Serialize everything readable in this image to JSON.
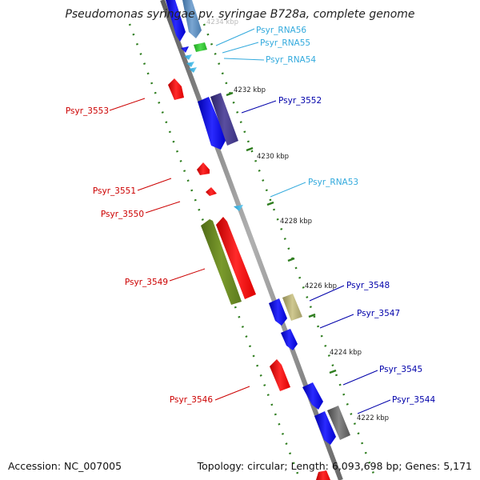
{
  "title": "Pseudomonas syringae pv. syringae B728a, complete genome",
  "footer": {
    "accession": "Accession: NC_007005",
    "topology": "Topology: circular; Length: 6,093,698 bp; Genes: 5,171"
  },
  "colors": {
    "backbone": "#8a8a8a",
    "ticks": "#2e7d1e",
    "gene_red": "#ff1a1a",
    "gene_blue": "#1a1aff",
    "rna_cyan": "#33bbee",
    "label_red": "#cc0000",
    "label_navy": "#0000aa",
    "label_cyan": "#33aadd"
  },
  "scale_labels": [
    {
      "text": "4234 kbp",
      "faded": true
    },
    {
      "text": "4232 kbp"
    },
    {
      "text": "4230 kbp"
    },
    {
      "text": "4228 kbp"
    },
    {
      "text": "4226 kbp"
    },
    {
      "text": "4224 kbp"
    },
    {
      "text": "4222 kbp"
    }
  ],
  "feature_labels": [
    {
      "text": "Psyr_RNA56",
      "color": "cyan"
    },
    {
      "text": "Psyr_RNA55",
      "color": "cyan"
    },
    {
      "text": "Psyr_RNA54",
      "color": "cyan"
    },
    {
      "text": "Psyr_3553",
      "color": "red"
    },
    {
      "text": "Psyr_3552",
      "color": "navy"
    },
    {
      "text": "Psyr_RNA53",
      "color": "cyan"
    },
    {
      "text": "Psyr_3551",
      "color": "red"
    },
    {
      "text": "Psyr_3550",
      "color": "red"
    },
    {
      "text": "Psyr_3549",
      "color": "red"
    },
    {
      "text": "Psyr_3548",
      "color": "navy"
    },
    {
      "text": "Psyr_3547",
      "color": "navy"
    },
    {
      "text": "Psyr_3545",
      "color": "navy"
    },
    {
      "text": "Psyr_3544",
      "color": "navy"
    },
    {
      "text": "Psyr_3546",
      "color": "red"
    }
  ]
}
